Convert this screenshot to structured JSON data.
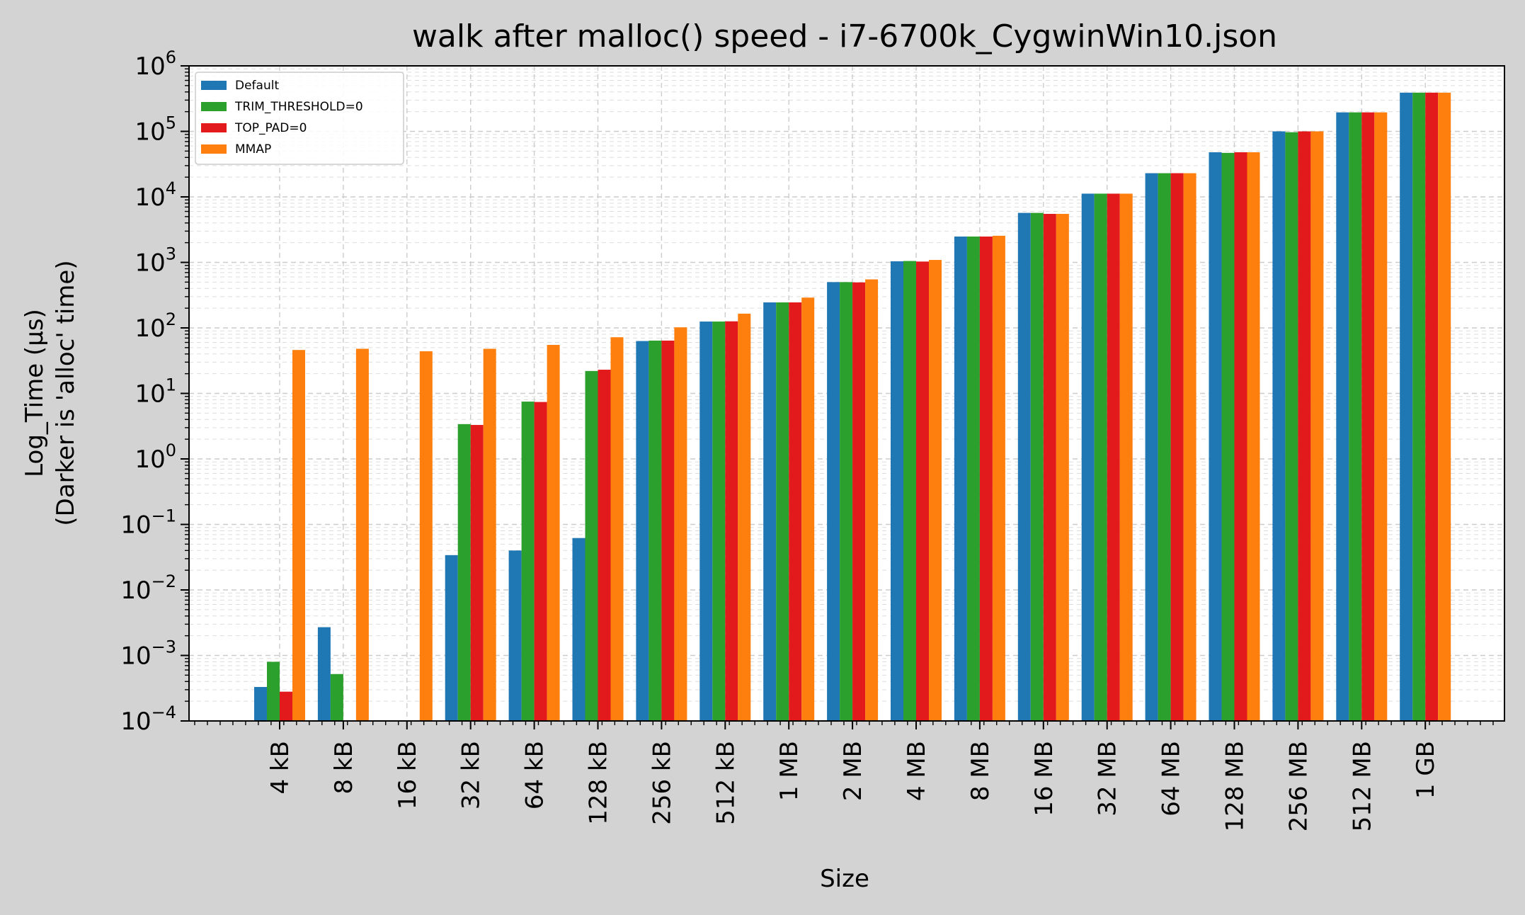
{
  "chart_data": {
    "type": "bar",
    "title": "walk after malloc() speed - i7-6700k_CygwinWin10.json",
    "xlabel": "Size",
    "ylabel": [
      "Log_Time (µs)",
      "(Darker is 'alloc' time)"
    ],
    "yscale": "log",
    "ylim": [
      0.0001,
      1000000
    ],
    "y_tick_exponents": [
      "−4",
      "−3",
      "−2",
      "−1",
      "0",
      "1",
      "2",
      "3",
      "4",
      "5",
      "6"
    ],
    "grid": true,
    "legend_position": "top-left",
    "categories": [
      "4 kB",
      "8 kB",
      "16 kB",
      "32 kB",
      "64 kB",
      "128 kB",
      "256 kB",
      "512 kB",
      "1 MB",
      "2 MB",
      "4 MB",
      "8 MB",
      "16 MB",
      "32 MB",
      "64 MB",
      "128 MB",
      "256 MB",
      "512 MB",
      "1 GB"
    ],
    "series": [
      {
        "name": "Default",
        "color": "#1f77b4",
        "values": [
          0.00033,
          0.0027,
          null,
          0.034,
          0.04,
          0.062,
          63,
          125,
          245,
          500,
          1040,
          2480,
          5700,
          11200,
          23000,
          48000,
          100000,
          195000,
          390000
        ]
      },
      {
        "name": "TRIM_THRESHOLD=0",
        "color": "#2ca02c",
        "values": [
          0.0008,
          0.00052,
          null,
          3.4,
          7.5,
          22,
          64,
          125,
          245,
          500,
          1050,
          2480,
          5700,
          11200,
          23000,
          47000,
          97000,
          195000,
          390000
        ]
      },
      {
        "name": "TOP_PAD=0",
        "color": "#e31a1c",
        "values": [
          0.00028,
          null,
          null,
          3.3,
          7.4,
          23,
          64,
          126,
          245,
          495,
          1030,
          2480,
          5500,
          11200,
          23000,
          48000,
          100000,
          195000,
          390000
        ]
      },
      {
        "name": "MMAP",
        "color": "#ff7f0e",
        "values": [
          46,
          48,
          44,
          48,
          55,
          72,
          102,
          165,
          290,
          550,
          1090,
          2550,
          5500,
          11200,
          23000,
          48000,
          100000,
          195000,
          390000
        ]
      }
    ]
  }
}
